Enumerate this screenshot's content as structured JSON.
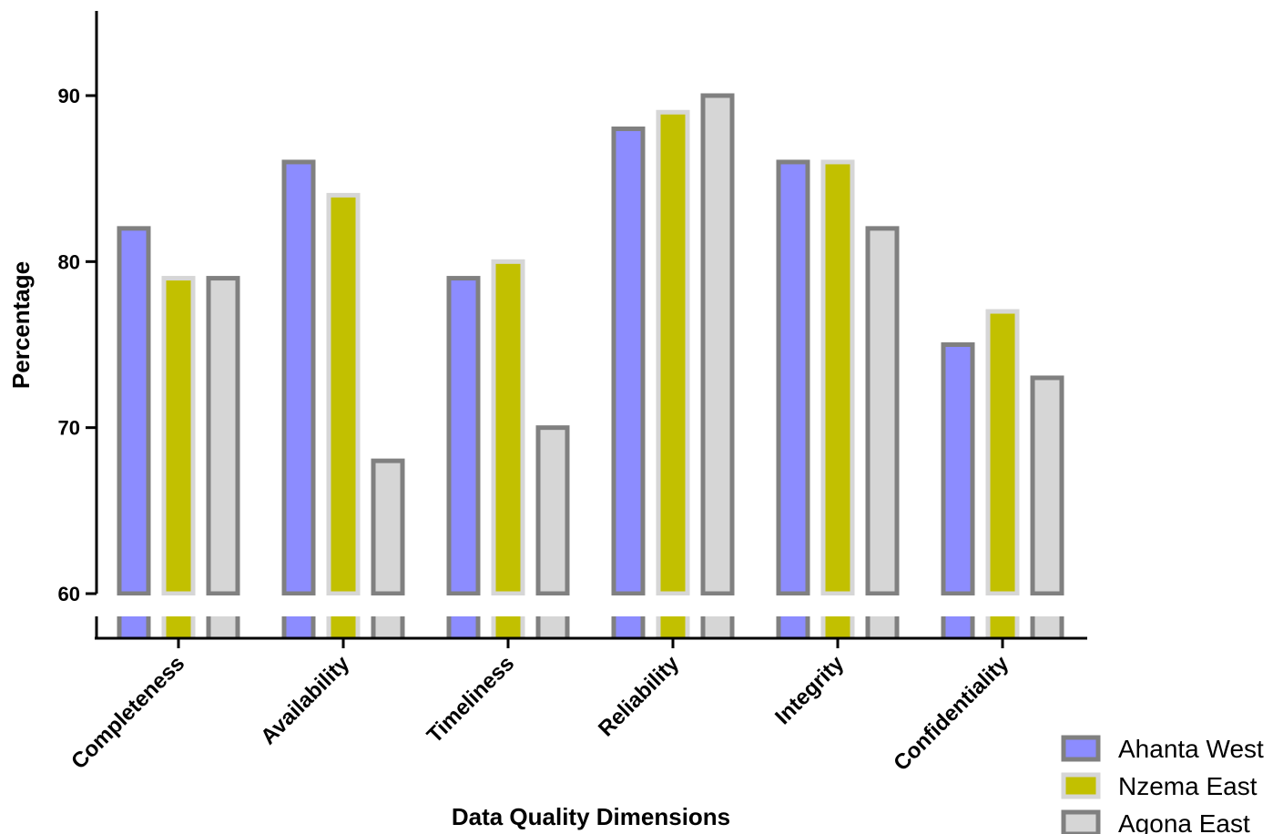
{
  "chart_data": {
    "type": "bar",
    "xlabel": "Data Quality Dimensions",
    "ylabel": "Percentage",
    "categories": [
      "Completeness",
      "Availability",
      "Timeliness",
      "Reliability",
      "Integrity",
      "Confidentiality"
    ],
    "series": [
      {
        "name": "Ahanta West",
        "values": [
          82,
          86,
          79,
          88,
          86,
          75
        ],
        "fill": "#8c8cff",
        "stroke": "#808080"
      },
      {
        "name": "Nzema East",
        "values": [
          79,
          84,
          80,
          89,
          86,
          77
        ],
        "fill": "#c2c000",
        "stroke": "#d6d6d6"
      },
      {
        "name": "Agona East",
        "values": [
          79,
          68,
          70,
          90,
          82,
          73
        ],
        "fill": "#d6d6d6",
        "stroke": "#808080"
      }
    ],
    "y_ticks": [
      60,
      70,
      80,
      90
    ],
    "y_tick_labels": [
      "60",
      "70",
      "80",
      "90"
    ],
    "ylim": [
      60,
      95
    ],
    "axis_break": true,
    "grid": false,
    "legend_position": "bottom-right"
  }
}
